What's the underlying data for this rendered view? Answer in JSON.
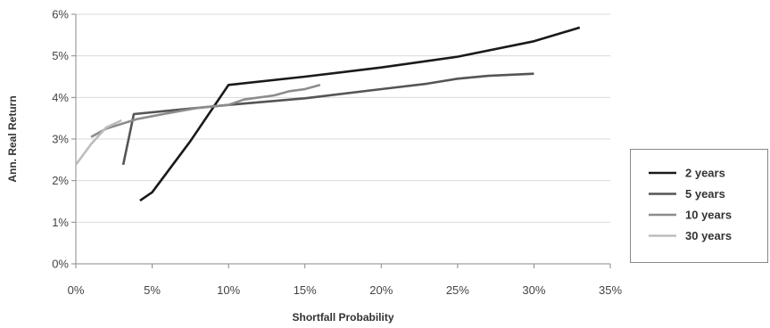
{
  "chart_data": {
    "type": "line",
    "title": "",
    "xlabel": "Shortfall Probability",
    "ylabel": "Ann. Real Return",
    "xlim": [
      0,
      0.35
    ],
    "ylim": [
      0,
      0.06
    ],
    "x_ticks": [
      0,
      0.05,
      0.1,
      0.15,
      0.2,
      0.25,
      0.3,
      0.35
    ],
    "x_tick_labels": [
      "0%",
      "5%",
      "10%",
      "15%",
      "20%",
      "25%",
      "30%",
      "35%"
    ],
    "y_ticks": [
      0,
      0.01,
      0.02,
      0.03,
      0.04,
      0.05,
      0.06
    ],
    "y_tick_labels": [
      "0%",
      "1%",
      "2%",
      "3%",
      "4%",
      "5%",
      "6%"
    ],
    "grid": "horizontal",
    "legend_position": "right",
    "series": [
      {
        "name": "2 years",
        "color": "#1a1a1a",
        "points": [
          [
            0.042,
            0.0152
          ],
          [
            0.05,
            0.0172
          ],
          [
            0.075,
            0.0295
          ],
          [
            0.1,
            0.043
          ],
          [
            0.15,
            0.045
          ],
          [
            0.2,
            0.0472
          ],
          [
            0.25,
            0.0498
          ],
          [
            0.3,
            0.0535
          ],
          [
            0.33,
            0.0568
          ]
        ]
      },
      {
        "name": "5 years",
        "color": "#555555",
        "points": [
          [
            0.031,
            0.0238
          ],
          [
            0.038,
            0.036
          ],
          [
            0.06,
            0.0368
          ],
          [
            0.1,
            0.0382
          ],
          [
            0.15,
            0.0398
          ],
          [
            0.2,
            0.042
          ],
          [
            0.23,
            0.0433
          ],
          [
            0.25,
            0.0445
          ],
          [
            0.27,
            0.0452
          ],
          [
            0.3,
            0.0457
          ]
        ]
      },
      {
        "name": "10 years",
        "color": "#8c8c8c",
        "points": [
          [
            0.01,
            0.0305
          ],
          [
            0.02,
            0.0325
          ],
          [
            0.04,
            0.0348
          ],
          [
            0.06,
            0.0362
          ],
          [
            0.08,
            0.0375
          ],
          [
            0.1,
            0.0382
          ],
          [
            0.11,
            0.0395
          ],
          [
            0.13,
            0.0405
          ],
          [
            0.14,
            0.0415
          ],
          [
            0.15,
            0.042
          ],
          [
            0.16,
            0.043
          ]
        ]
      },
      {
        "name": "30 years",
        "color": "#bdbdbd",
        "points": [
          [
            0.0,
            0.0238
          ],
          [
            0.01,
            0.0288
          ],
          [
            0.02,
            0.0328
          ],
          [
            0.03,
            0.0345
          ]
        ]
      }
    ]
  }
}
